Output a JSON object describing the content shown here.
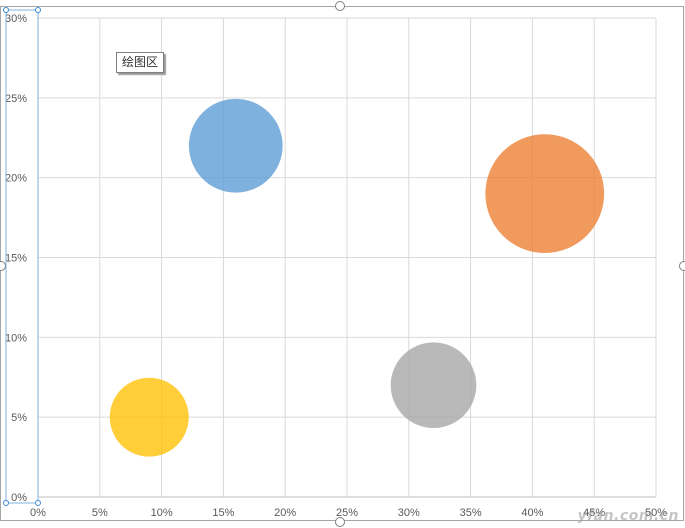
{
  "tooltip": {
    "label": "绘图区"
  },
  "watermark": {
    "text": "yfan.com.cn"
  },
  "chart_data": {
    "type": "bubble",
    "title": "",
    "xlabel": "",
    "ylabel": "",
    "xlim": [
      0,
      50
    ],
    "ylim": [
      0,
      30
    ],
    "x_ticks": [
      "0%",
      "5%",
      "10%",
      "15%",
      "20%",
      "25%",
      "30%",
      "35%",
      "40%",
      "45%",
      "50%"
    ],
    "y_ticks": [
      "0%",
      "5%",
      "10%",
      "15%",
      "20%",
      "25%",
      "30%"
    ],
    "grid": true,
    "legend": "none",
    "series": [
      {
        "x": 16,
        "y": 22,
        "size": 4.8,
        "color": "#5B9BD5"
      },
      {
        "x": 41,
        "y": 19,
        "size": 7.7,
        "color": "#ED7D31"
      },
      {
        "x": 32,
        "y": 7,
        "size": 4.0,
        "color": "#A5A5A5"
      },
      {
        "x": 9,
        "y": 5,
        "size": 3.4,
        "color": "#FFC000"
      }
    ]
  }
}
